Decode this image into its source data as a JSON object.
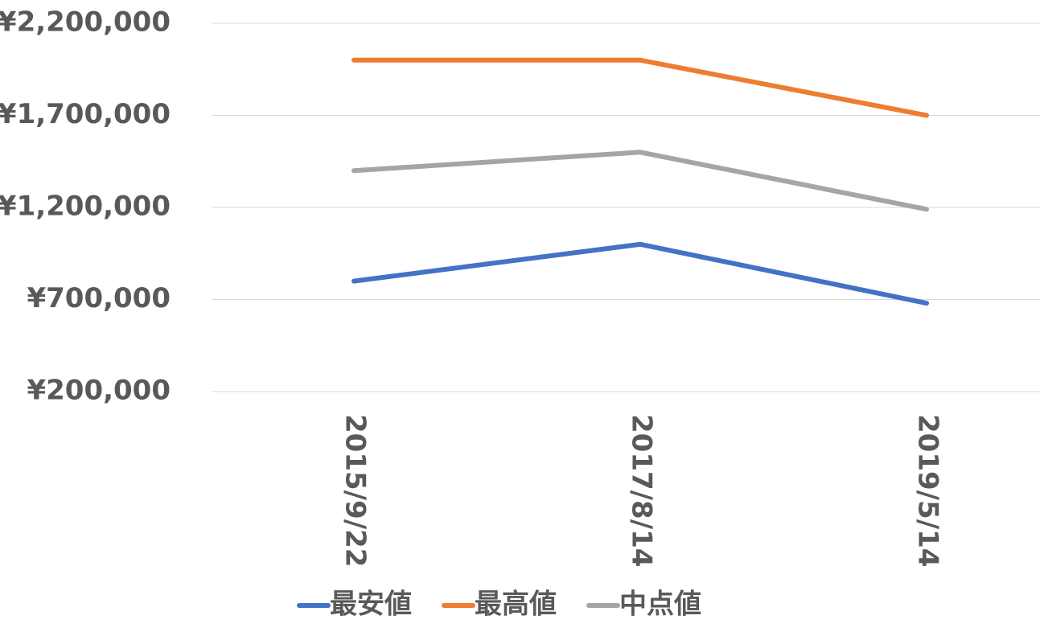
{
  "chart_data": {
    "type": "line",
    "x": [
      "2015/9/22",
      "2017/8/14",
      "2019/5/14"
    ],
    "series": [
      {
        "name": "最安値",
        "color": "#4472c4",
        "values": [
          800000,
          1000000,
          680000
        ]
      },
      {
        "name": "最高値",
        "color": "#ed7d31",
        "values": [
          2000000,
          2000000,
          1700000
        ]
      },
      {
        "name": "中点値",
        "color": "#a5a5a5",
        "values": [
          1400000,
          1500000,
          1190000
        ]
      }
    ],
    "ylim": [
      200000,
      2200000
    ],
    "yticks": [
      {
        "value": 200000,
        "label": "¥200,000"
      },
      {
        "value": 700000,
        "label": "¥700,000"
      },
      {
        "value": 1200000,
        "label": "¥1,200,000"
      },
      {
        "value": 1700000,
        "label": "¥1,700,000"
      },
      {
        "value": 2200000,
        "label": "¥2,200,000"
      }
    ],
    "grid": true,
    "legend": "bottom"
  }
}
